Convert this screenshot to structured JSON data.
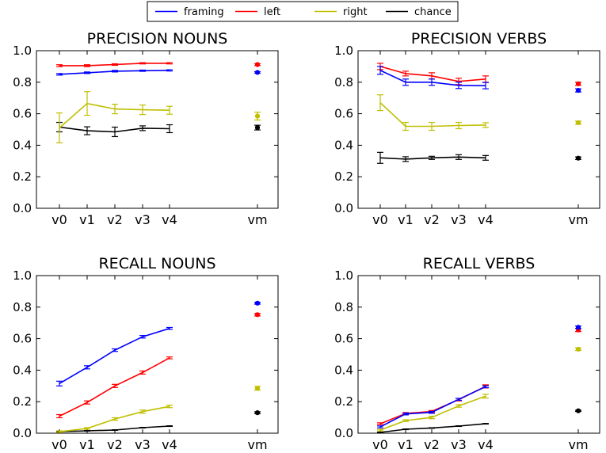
{
  "legend": {
    "items": [
      {
        "label": "framing",
        "color": "#0000ff"
      },
      {
        "label": "left",
        "color": "#ff0000"
      },
      {
        "label": "right",
        "color": "#bfbf00"
      },
      {
        "label": "chance",
        "color": "#000000"
      }
    ]
  },
  "chart_data": [
    {
      "type": "line",
      "title": "PRECISION NOUNS",
      "categories": [
        "v0",
        "v1",
        "v2",
        "v3",
        "v4"
      ],
      "extra_category": "vm",
      "ylim": [
        0.0,
        1.0
      ],
      "yticks": [
        "0.0",
        "0.2",
        "0.4",
        "0.6",
        "0.8",
        "1.0"
      ],
      "series": [
        {
          "name": "framing",
          "values": [
            0.85,
            0.86,
            0.87,
            0.873,
            0.875
          ],
          "errors": [
            0.005,
            0.005,
            0.005,
            0.004,
            0.004
          ],
          "vm": 0.862,
          "vm_err": 0.005
        },
        {
          "name": "left",
          "values": [
            0.905,
            0.905,
            0.912,
            0.92,
            0.92
          ],
          "errors": [
            0.006,
            0.006,
            0.005,
            0.004,
            0.004
          ],
          "vm": 0.912,
          "vm_err": 0.006
        },
        {
          "name": "right",
          "values": [
            0.51,
            0.665,
            0.63,
            0.625,
            0.622
          ],
          "errors": [
            0.095,
            0.075,
            0.03,
            0.03,
            0.025
          ],
          "vm": 0.585,
          "vm_err": 0.025
        },
        {
          "name": "chance",
          "values": [
            0.515,
            0.492,
            0.485,
            0.508,
            0.505
          ],
          "errors": [
            0.03,
            0.025,
            0.03,
            0.015,
            0.025
          ],
          "vm": 0.512,
          "vm_err": 0.015
        }
      ]
    },
    {
      "type": "line",
      "title": "PRECISION VERBS",
      "categories": [
        "v0",
        "v1",
        "v2",
        "v3",
        "v4"
      ],
      "extra_category": "vm",
      "ylim": [
        0.0,
        1.0
      ],
      "yticks": [
        "0.0",
        "0.2",
        "0.4",
        "0.6",
        "0.8",
        "1.0"
      ],
      "series": [
        {
          "name": "framing",
          "values": [
            0.875,
            0.8,
            0.8,
            0.78,
            0.778
          ],
          "errors": [
            0.025,
            0.02,
            0.02,
            0.02,
            0.02
          ],
          "vm": 0.748,
          "vm_err": 0.01
        },
        {
          "name": "left",
          "values": [
            0.9,
            0.855,
            0.84,
            0.805,
            0.82
          ],
          "errors": [
            0.02,
            0.015,
            0.02,
            0.02,
            0.02
          ],
          "vm": 0.79,
          "vm_err": 0.01
        },
        {
          "name": "right",
          "values": [
            0.67,
            0.52,
            0.52,
            0.525,
            0.528
          ],
          "errors": [
            0.05,
            0.025,
            0.025,
            0.02,
            0.015
          ],
          "vm": 0.543,
          "vm_err": 0.01
        },
        {
          "name": "chance",
          "values": [
            0.32,
            0.312,
            0.32,
            0.325,
            0.32
          ],
          "errors": [
            0.035,
            0.015,
            0.01,
            0.015,
            0.015
          ],
          "vm": 0.318,
          "vm_err": 0.008
        }
      ]
    },
    {
      "type": "line",
      "title": "RECALL NOUNS",
      "categories": [
        "v0",
        "v1",
        "v2",
        "v3",
        "v4"
      ],
      "extra_category": "vm",
      "ylim": [
        0.0,
        1.0
      ],
      "yticks": [
        "0.0",
        "0.2",
        "0.4",
        "0.6",
        "0.8",
        "1.0"
      ],
      "series": [
        {
          "name": "framing",
          "values": [
            0.315,
            0.418,
            0.527,
            0.612,
            0.665
          ],
          "errors": [
            0.015,
            0.01,
            0.008,
            0.008,
            0.006
          ],
          "vm": 0.825,
          "vm_err": 0.006
        },
        {
          "name": "left",
          "values": [
            0.108,
            0.195,
            0.3,
            0.385,
            0.478
          ],
          "errors": [
            0.01,
            0.01,
            0.01,
            0.01,
            0.006
          ],
          "vm": 0.752,
          "vm_err": 0.008
        },
        {
          "name": "right",
          "values": [
            0.01,
            0.03,
            0.09,
            0.137,
            0.17
          ],
          "errors": [
            0.005,
            0.005,
            0.008,
            0.01,
            0.008
          ],
          "vm": 0.285,
          "vm_err": 0.012
        },
        {
          "name": "chance",
          "values": [
            0.01,
            0.015,
            0.02,
            0.035,
            0.045
          ],
          "errors": [
            0.002,
            0.002,
            0.002,
            0.002,
            0.002
          ],
          "vm": 0.13,
          "vm_err": 0.006
        }
      ]
    },
    {
      "type": "line",
      "title": "RECALL VERBS",
      "categories": [
        "v0",
        "v1",
        "v2",
        "v3",
        "v4"
      ],
      "extra_category": "vm",
      "ylim": [
        0.0,
        1.0
      ],
      "yticks": [
        "0.0",
        "0.2",
        "0.4",
        "0.6",
        "0.8",
        "1.0"
      ],
      "series": [
        {
          "name": "framing",
          "values": [
            0.04,
            0.122,
            0.132,
            0.215,
            0.295
          ],
          "errors": [
            0.006,
            0.006,
            0.006,
            0.006,
            0.006
          ],
          "vm": 0.672,
          "vm_err": 0.008
        },
        {
          "name": "left",
          "values": [
            0.06,
            0.125,
            0.138,
            0.213,
            0.297
          ],
          "errors": [
            0.006,
            0.006,
            0.006,
            0.008,
            0.01
          ],
          "vm": 0.655,
          "vm_err": 0.01
        },
        {
          "name": "right",
          "values": [
            0.02,
            0.08,
            0.1,
            0.173,
            0.235
          ],
          "errors": [
            0.005,
            0.005,
            0.008,
            0.008,
            0.012
          ],
          "vm": 0.533,
          "vm_err": 0.008
        },
        {
          "name": "chance",
          "values": [
            0.005,
            0.025,
            0.033,
            0.045,
            0.06
          ],
          "errors": [
            0.002,
            0.002,
            0.002,
            0.002,
            0.002
          ],
          "vm": 0.142,
          "vm_err": 0.004
        }
      ]
    }
  ]
}
